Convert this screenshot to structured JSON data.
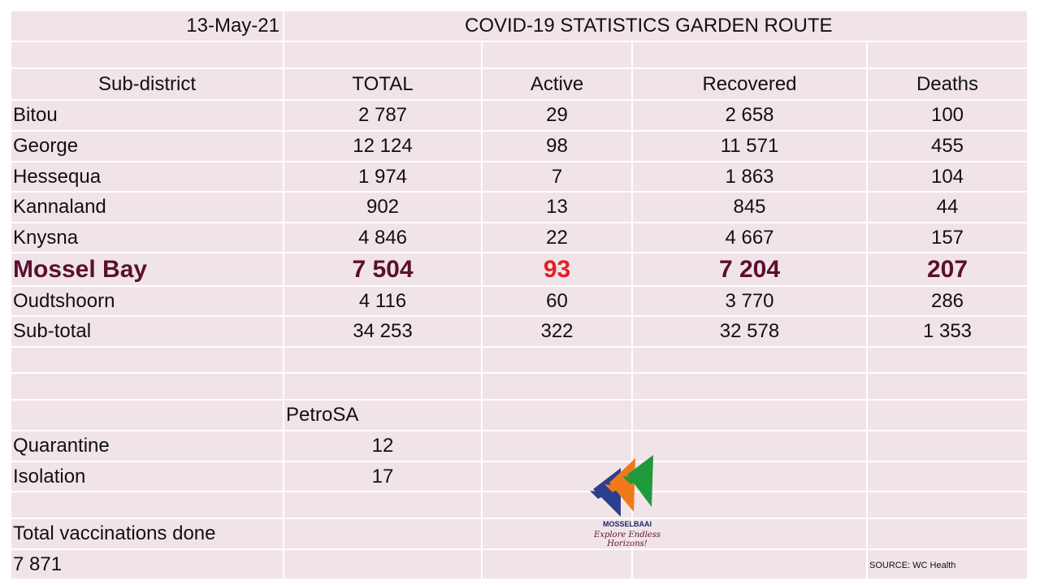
{
  "header": {
    "date": "13-May-21",
    "title": "COVID-19 STATISTICS  GARDEN ROUTE"
  },
  "columns": [
    "Sub-district",
    "TOTAL",
    "Active",
    "Recovered",
    "Deaths"
  ],
  "rows": [
    {
      "name": "Bitou",
      "total": "2 787",
      "active": "29",
      "recovered": "2 658",
      "deaths": "100"
    },
    {
      "name": "George",
      "total": "12 124",
      "active": "98",
      "recovered": "11 571",
      "deaths": "455"
    },
    {
      "name": "Hessequa",
      "total": "1 974",
      "active": "7",
      "recovered": "1 863",
      "deaths": "104"
    },
    {
      "name": "Kannaland",
      "total": "902",
      "active": "13",
      "recovered": "845",
      "deaths": "44"
    },
    {
      "name": "Knysna",
      "total": "4 846",
      "active": "22",
      "recovered": "4 667",
      "deaths": "157"
    },
    {
      "name": "Mossel Bay",
      "total": "7 504",
      "active": "93",
      "recovered": "7 204",
      "deaths": "207"
    },
    {
      "name": "Oudtshoorn",
      "total": "4 116",
      "active": "60",
      "recovered": "3 770",
      "deaths": "286"
    },
    {
      "name": "Sub-total",
      "total": "34 253",
      "active": "322",
      "recovered": "32 578",
      "deaths": "1 353"
    }
  ],
  "petrosa": {
    "label": "PetroSA",
    "quarantine_label": "Quarantine",
    "quarantine_value": "12",
    "isolation_label": "Isolation",
    "isolation_value": "17"
  },
  "vaccinations": {
    "label": "Total vaccinations done",
    "value": "7 871"
  },
  "source": "SOURCE:  WC Health",
  "logo": {
    "name": "MOSSELBAAI",
    "tagline": "Explore Endless Horizons!",
    "colors": {
      "blue": "#2b3f8f",
      "orange": "#f07a1a",
      "green": "#1f9a3a"
    }
  },
  "colors": {
    "cell_bg": "#f1e4e8",
    "highlight": "#5a1030",
    "highlight_active": "#e31e24"
  }
}
